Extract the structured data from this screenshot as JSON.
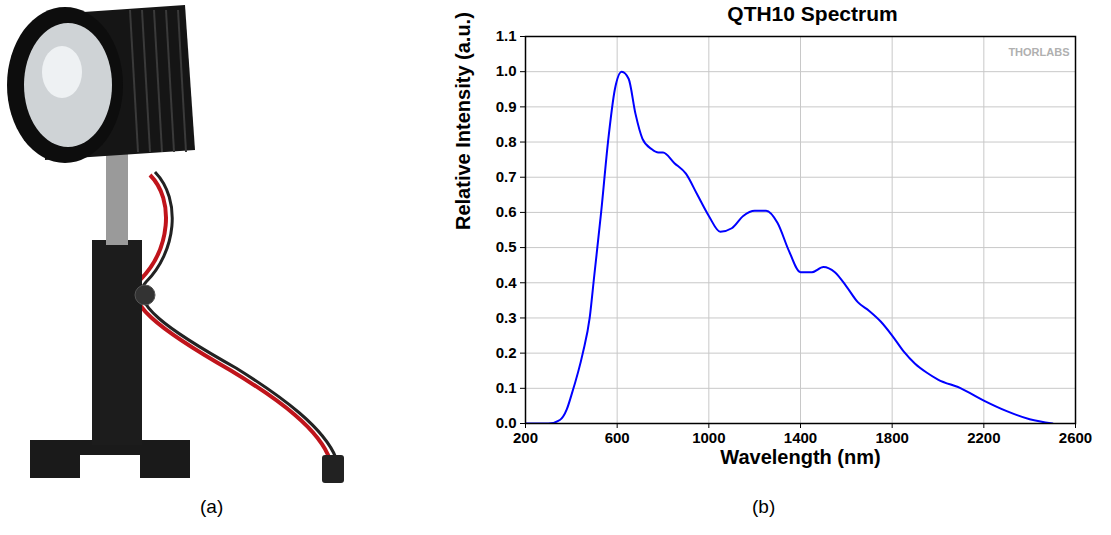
{
  "figure": {
    "panel_labels": [
      "(a)",
      "(b)"
    ]
  },
  "chart_data": {
    "type": "line",
    "title": "QTH10 Spectrum",
    "xlabel": "Wavelength (nm)",
    "ylabel": "Relative Intensity (a.u.)",
    "annotations": [
      "THORLABS"
    ],
    "color": "#0000ff",
    "grid": true,
    "x": [
      200,
      300,
      350,
      380,
      400,
      450,
      480,
      500,
      530,
      560,
      590,
      620,
      650,
      680,
      710,
      750,
      780,
      800,
      850,
      900,
      950,
      1000,
      1050,
      1100,
      1150,
      1200,
      1250,
      1300,
      1350,
      1400,
      1450,
      1500,
      1550,
      1600,
      1650,
      1700,
      1750,
      1800,
      1850,
      1900,
      1950,
      2000,
      2100,
      2200,
      2300,
      2400,
      2500
    ],
    "values": [
      0,
      0,
      0.01,
      0.04,
      0.08,
      0.2,
      0.3,
      0.42,
      0.6,
      0.8,
      0.95,
      1.0,
      0.98,
      0.88,
      0.81,
      0.78,
      0.77,
      0.77,
      0.74,
      0.71,
      0.65,
      0.59,
      0.545,
      0.555,
      0.59,
      0.605,
      0.605,
      0.57,
      0.49,
      0.43,
      0.43,
      0.445,
      0.43,
      0.39,
      0.345,
      0.32,
      0.29,
      0.25,
      0.205,
      0.17,
      0.145,
      0.125,
      0.1,
      0.065,
      0.035,
      0.012,
      0
    ],
    "xlim": [
      200,
      2600
    ],
    "xticks": [
      200,
      600,
      1000,
      1400,
      1800,
      2200,
      2600
    ],
    "ylim": [
      0,
      1.1
    ],
    "yticks": [
      {
        "value": 0,
        "label": "0.0"
      },
      0.1,
      0.2,
      0.3,
      0.4,
      0.5,
      0.6,
      0.7,
      0.8,
      0.9,
      {
        "value": 1,
        "label": "1.0"
      },
      1.1
    ]
  }
}
